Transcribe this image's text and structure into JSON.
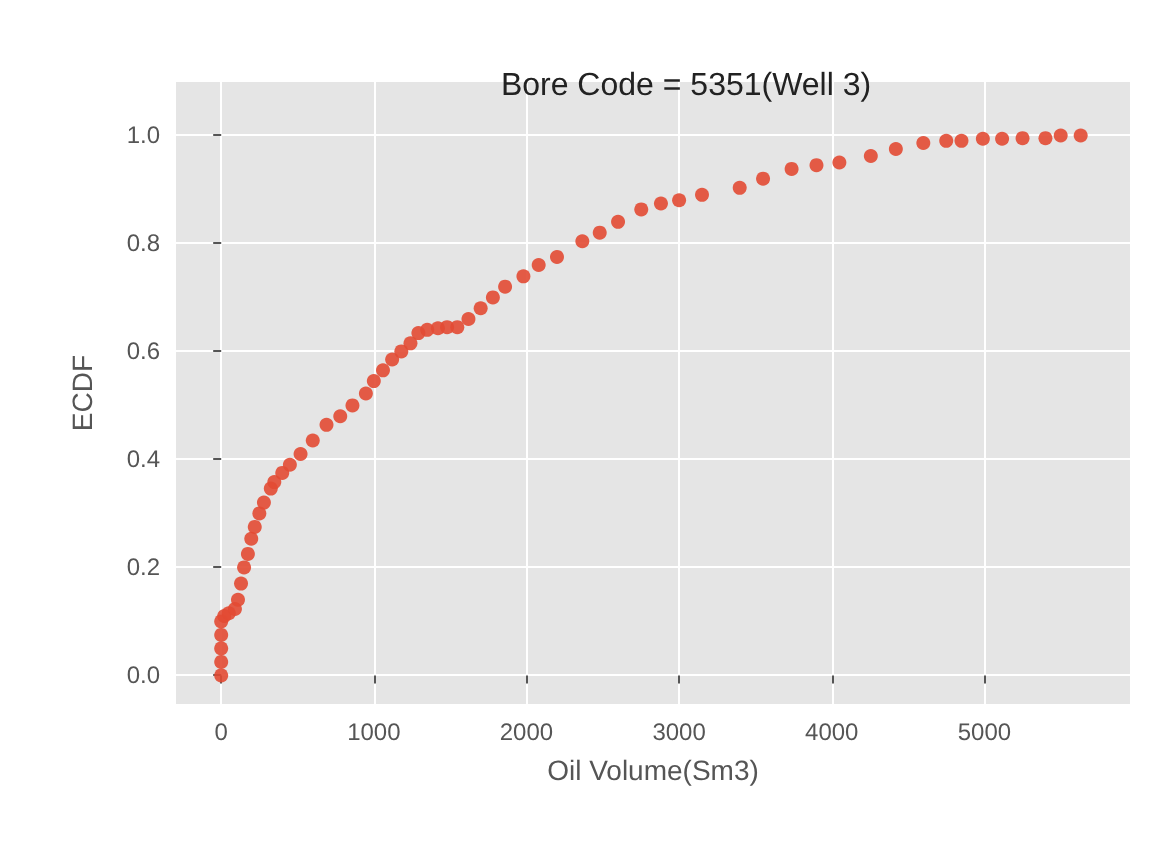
{
  "chart_data": {
    "type": "scatter",
    "title": "Bore Code = 5351(Well 3)",
    "xlabel": "Oil Volume(Sm3)",
    "ylabel": "ECDF",
    "x": [
      0,
      0,
      0,
      0,
      0,
      20,
      50,
      90,
      110,
      130,
      150,
      175,
      197,
      220,
      250,
      280,
      325,
      348,
      400,
      450,
      520,
      600,
      690,
      780,
      860,
      948,
      1000,
      1060,
      1120,
      1180,
      1240,
      1292,
      1350,
      1420,
      1480,
      1547,
      1620,
      1700,
      1780,
      1860,
      1980,
      2080,
      2200,
      2366,
      2480,
      2600,
      2752,
      2881,
      3000,
      3150,
      3397,
      3550,
      3737,
      3900,
      4050,
      4256,
      4420,
      4600,
      4750,
      4850,
      4990,
      5116,
      5250,
      5400,
      5500,
      5631
    ],
    "values": [
      0,
      0.025,
      0.05,
      0.075,
      0.1,
      0.11,
      0.115,
      0.123,
      0.14,
      0.17,
      0.2,
      0.225,
      0.253,
      0.275,
      0.3,
      0.32,
      0.346,
      0.358,
      0.375,
      0.39,
      0.41,
      0.435,
      0.464,
      0.48,
      0.5,
      0.522,
      0.545,
      0.565,
      0.585,
      0.6,
      0.615,
      0.634,
      0.64,
      0.643,
      0.645,
      0.645,
      0.66,
      0.68,
      0.7,
      0.72,
      0.739,
      0.76,
      0.775,
      0.804,
      0.82,
      0.84,
      0.863,
      0.874,
      0.88,
      0.89,
      0.903,
      0.92,
      0.938,
      0.945,
      0.95,
      0.962,
      0.975,
      0.986,
      0.99,
      0.99,
      0.994,
      0.994,
      0.995,
      0.995,
      1.0,
      1.0
    ],
    "color": "#e24a33",
    "marker": "circle",
    "grid": true,
    "xlim": [
      -296,
      5954
    ],
    "ylim": [
      -0.053,
      1.099
    ],
    "xticks": [
      0,
      1000,
      2000,
      3000,
      4000,
      5000
    ],
    "yticks": [
      {
        "value": 0,
        "label": "0.0"
      },
      {
        "value": 0.2,
        "label": "0.2"
      },
      {
        "value": 0.4,
        "label": "0.4"
      },
      {
        "value": 0.6,
        "label": "0.6"
      },
      {
        "value": 0.8,
        "label": "0.8"
      },
      {
        "value": 1,
        "label": "1.0"
      }
    ]
  }
}
